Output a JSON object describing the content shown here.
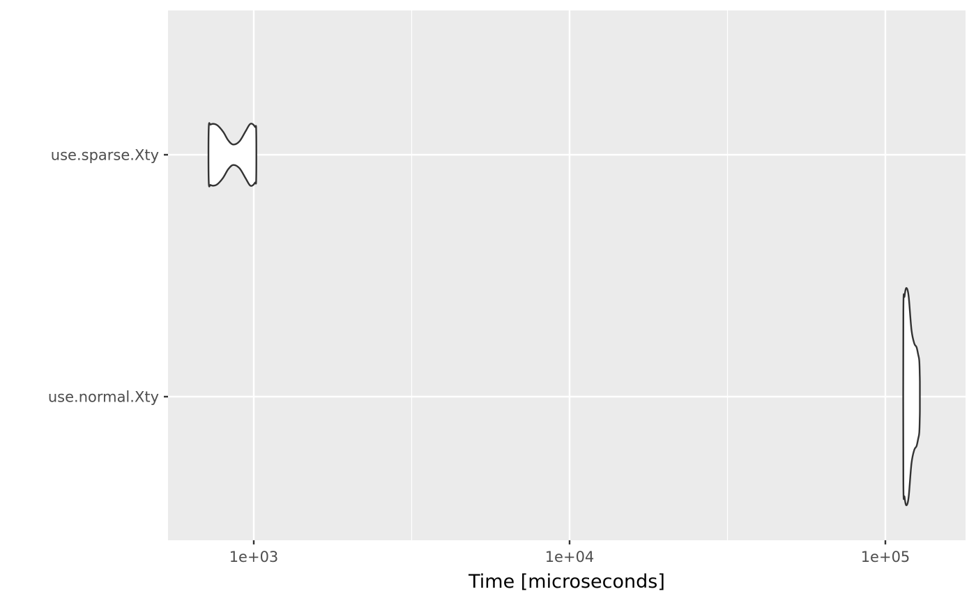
{
  "chart_data": {
    "type": "violin",
    "orientation": "horizontal",
    "xlabel": "Time [microseconds]",
    "ylabel": "",
    "x_scale": "log10",
    "xlim": [
      720,
      130000
    ],
    "x_ticks": [
      {
        "value": 1000,
        "label": "1e+03"
      },
      {
        "value": 10000,
        "label": "1e+04"
      },
      {
        "value": 100000,
        "label": "1e+05"
      }
    ],
    "x_minor_gridlines": [
      3162.28,
      31622.78
    ],
    "categories": [
      "use.sparse.Xty",
      "use.normal.Xty"
    ],
    "series": [
      {
        "category": "use.sparse.Xty",
        "profile": [
          {
            "x": 720,
            "w": 0.22
          },
          {
            "x": 730,
            "w": 0.25
          },
          {
            "x": 750,
            "w": 0.255
          },
          {
            "x": 770,
            "w": 0.24
          },
          {
            "x": 800,
            "w": 0.19
          },
          {
            "x": 830,
            "w": 0.12
          },
          {
            "x": 860,
            "w": 0.085
          },
          {
            "x": 900,
            "w": 0.11
          },
          {
            "x": 940,
            "w": 0.19
          },
          {
            "x": 970,
            "w": 0.25
          },
          {
            "x": 990,
            "w": 0.255
          },
          {
            "x": 1010,
            "w": 0.23
          },
          {
            "x": 1018,
            "w": 0.2
          }
        ]
      },
      {
        "category": "use.normal.Xty",
        "profile": [
          {
            "x": 114000,
            "w": 0.7
          },
          {
            "x": 115000,
            "w": 0.83
          },
          {
            "x": 116500,
            "w": 0.9
          },
          {
            "x": 118500,
            "w": 0.83
          },
          {
            "x": 121000,
            "w": 0.55
          },
          {
            "x": 123500,
            "w": 0.44
          },
          {
            "x": 125500,
            "w": 0.41
          },
          {
            "x": 127000,
            "w": 0.35
          },
          {
            "x": 128000,
            "w": 0.3
          },
          {
            "x": 128500,
            "w": 0.18
          },
          {
            "x": 128600,
            "w": 0.1
          }
        ]
      }
    ],
    "colors": {
      "panel_background": "#ebebeb",
      "gridline": "#ffffff",
      "violin_fill": "#ffffff",
      "violin_outline": "#333333",
      "tick_mark": "#333333"
    },
    "grid": true,
    "legend": "none"
  }
}
